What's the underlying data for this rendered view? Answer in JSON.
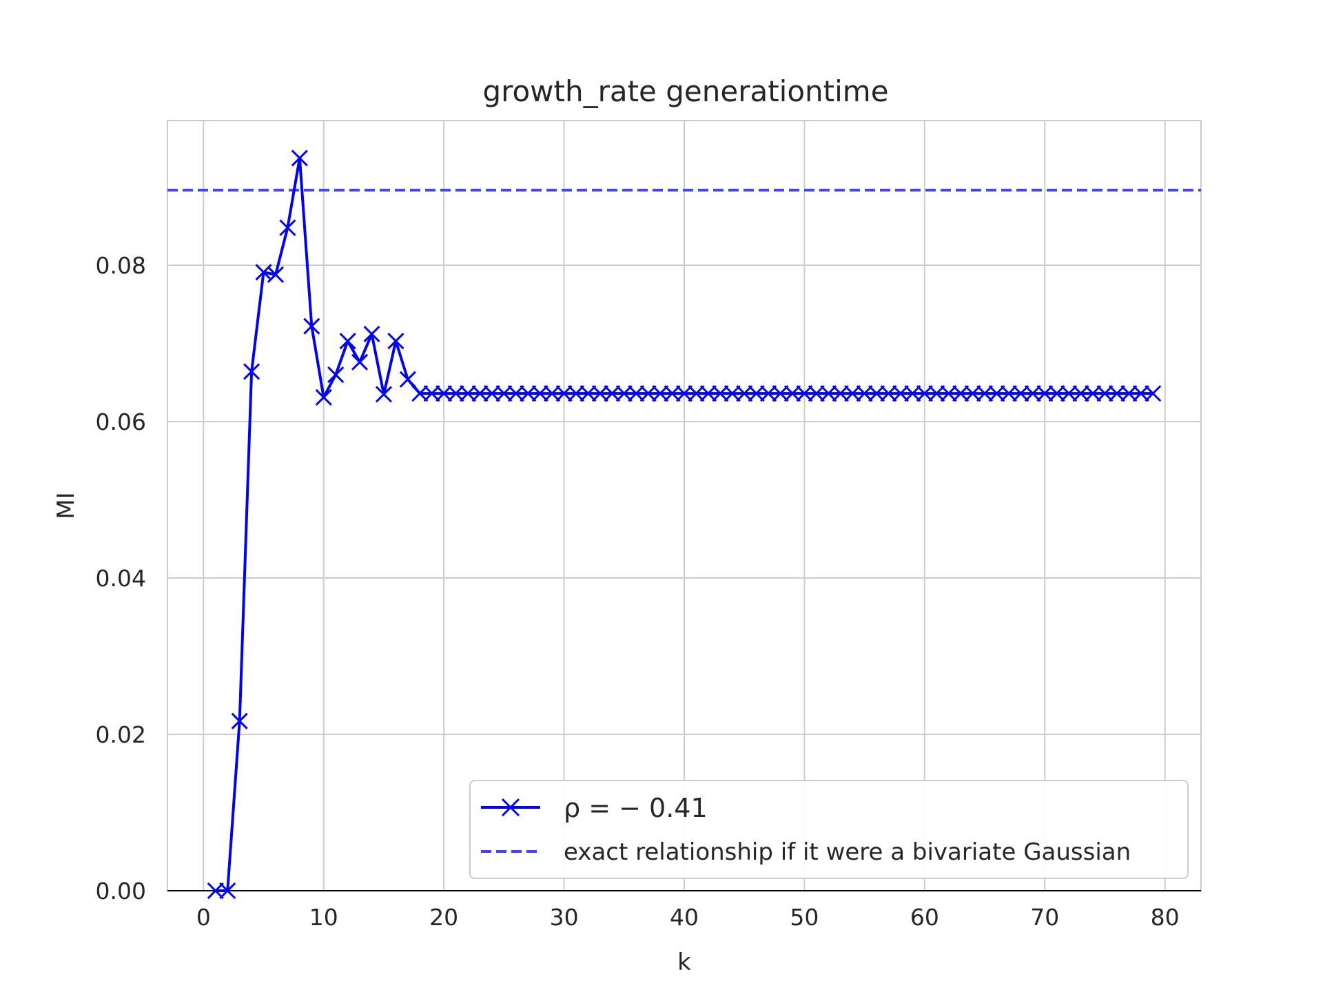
{
  "chart_data": {
    "type": "line",
    "title": "growth_rate generationtime",
    "xlabel": "k",
    "ylabel": "MI",
    "xlim": [
      -3,
      83
    ],
    "ylim": [
      0,
      0.0985
    ],
    "x_ticks": [
      0,
      10,
      20,
      30,
      40,
      50,
      60,
      70,
      80
    ],
    "x_tick_labels": [
      "0",
      "10",
      "20",
      "30",
      "40",
      "50",
      "60",
      "70",
      "80"
    ],
    "y_ticks": [
      0.0,
      0.02,
      0.04,
      0.06,
      0.08
    ],
    "y_tick_labels": [
      "0.00",
      "0.02",
      "0.04",
      "0.06",
      "0.08"
    ],
    "grid": true,
    "legend_position": "lower-right",
    "series": [
      {
        "name": "ρ = − 0.41",
        "style": "solid",
        "marker": "x",
        "color": "#0000ff",
        "x": [
          1,
          2,
          3,
          4,
          5,
          6,
          7,
          8,
          9,
          10,
          11,
          12,
          13,
          14,
          15,
          16,
          17,
          18,
          19,
          20,
          21,
          22,
          23,
          24,
          25,
          26,
          27,
          28,
          29,
          30,
          31,
          32,
          33,
          34,
          35,
          36,
          37,
          38,
          39,
          40,
          41,
          42,
          43,
          44,
          45,
          46,
          47,
          48,
          49,
          50,
          51,
          52,
          53,
          54,
          55,
          56,
          57,
          58,
          59,
          60,
          61,
          62,
          63,
          64,
          65,
          66,
          67,
          68,
          69,
          70,
          71,
          72,
          73,
          74,
          75,
          76,
          77,
          78,
          79
        ],
        "y": [
          0.0,
          0.0,
          0.0217,
          0.0664,
          0.0791,
          0.0788,
          0.0848,
          0.0937,
          0.0722,
          0.0631,
          0.066,
          0.0703,
          0.0676,
          0.0712,
          0.0635,
          0.0703,
          0.0654,
          0.0636,
          0.0636,
          0.0636,
          0.0636,
          0.0636,
          0.0636,
          0.0636,
          0.0636,
          0.0636,
          0.0636,
          0.0636,
          0.0636,
          0.0636,
          0.0636,
          0.0636,
          0.0636,
          0.0636,
          0.0636,
          0.0636,
          0.0636,
          0.0636,
          0.0636,
          0.0636,
          0.0636,
          0.0636,
          0.0636,
          0.0636,
          0.0636,
          0.0636,
          0.0636,
          0.0636,
          0.0636,
          0.0636,
          0.0636,
          0.0636,
          0.0636,
          0.0636,
          0.0636,
          0.0636,
          0.0636,
          0.0636,
          0.0636,
          0.0636,
          0.0636,
          0.0636,
          0.0636,
          0.0636,
          0.0636,
          0.0636,
          0.0636,
          0.0636,
          0.0636,
          0.0636,
          0.0636,
          0.0636,
          0.0636,
          0.0636,
          0.0636,
          0.0636,
          0.0636,
          0.0636,
          0.0636
        ]
      },
      {
        "name": "exact relationship if it were a bivariate Gaussian",
        "style": "dashed",
        "color": "#4444ff",
        "y_constant": 0.0896
      }
    ]
  }
}
